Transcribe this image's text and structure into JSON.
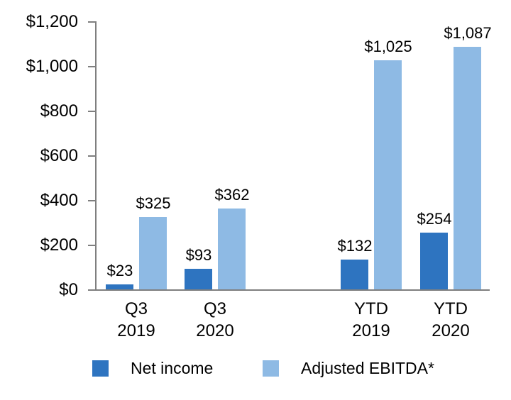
{
  "chart_data": {
    "type": "bar",
    "title": "",
    "xlabel": "",
    "ylabel": "",
    "categories": [
      "Q3\n2019",
      "Q3\n2020",
      "YTD\n2019",
      "YTD\n2020"
    ],
    "series": [
      {
        "name": "Net income",
        "color": "#2E74C0",
        "values": [
          23,
          93,
          132,
          254
        ],
        "labels": [
          "$23",
          "$93",
          "$132",
          "$254"
        ]
      },
      {
        "name": "Adjusted EBITDA*",
        "color": "#8EBAE4",
        "values": [
          325,
          362,
          1025,
          1087
        ],
        "labels": [
          "$325",
          "$362",
          "$1,025",
          "$1,087"
        ]
      }
    ],
    "y_axis": {
      "min": 0,
      "max": 1200,
      "tick_step": 200,
      "tick_labels": [
        "$0",
        "$200",
        "$400",
        "$600",
        "$800",
        "$1,000",
        "$1,200"
      ]
    },
    "grid": false,
    "legend_position": "bottom",
    "axis_color": "#7F7F7F",
    "text_color": "#000000"
  }
}
